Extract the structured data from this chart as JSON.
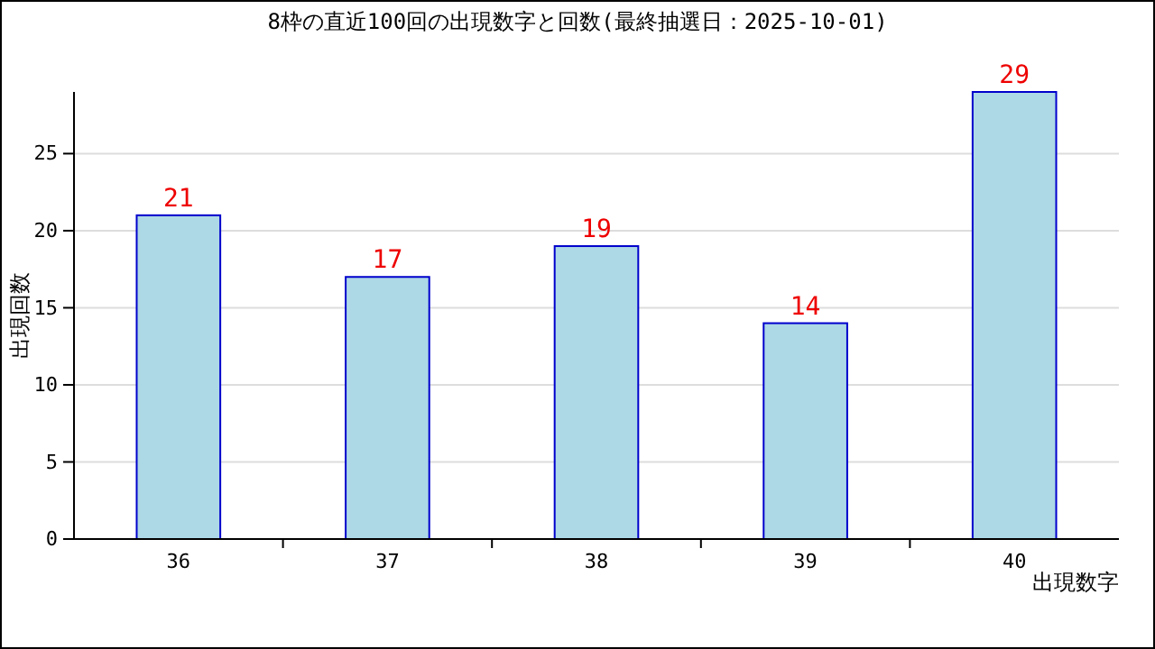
{
  "chart_data": {
    "type": "bar",
    "title": "8枠の直近100回の出現数字と回数(最終抽選日：2025-10-01)",
    "xlabel": "出現数字",
    "ylabel": "出現回数",
    "categories": [
      "36",
      "37",
      "38",
      "39",
      "40"
    ],
    "values": [
      21,
      17,
      19,
      14,
      29
    ],
    "color": "#add8e6",
    "data_labels": true,
    "ylim": [
      0,
      29
    ],
    "yticks": [
      0,
      5,
      10,
      15,
      20,
      25
    ],
    "grid": "y"
  }
}
